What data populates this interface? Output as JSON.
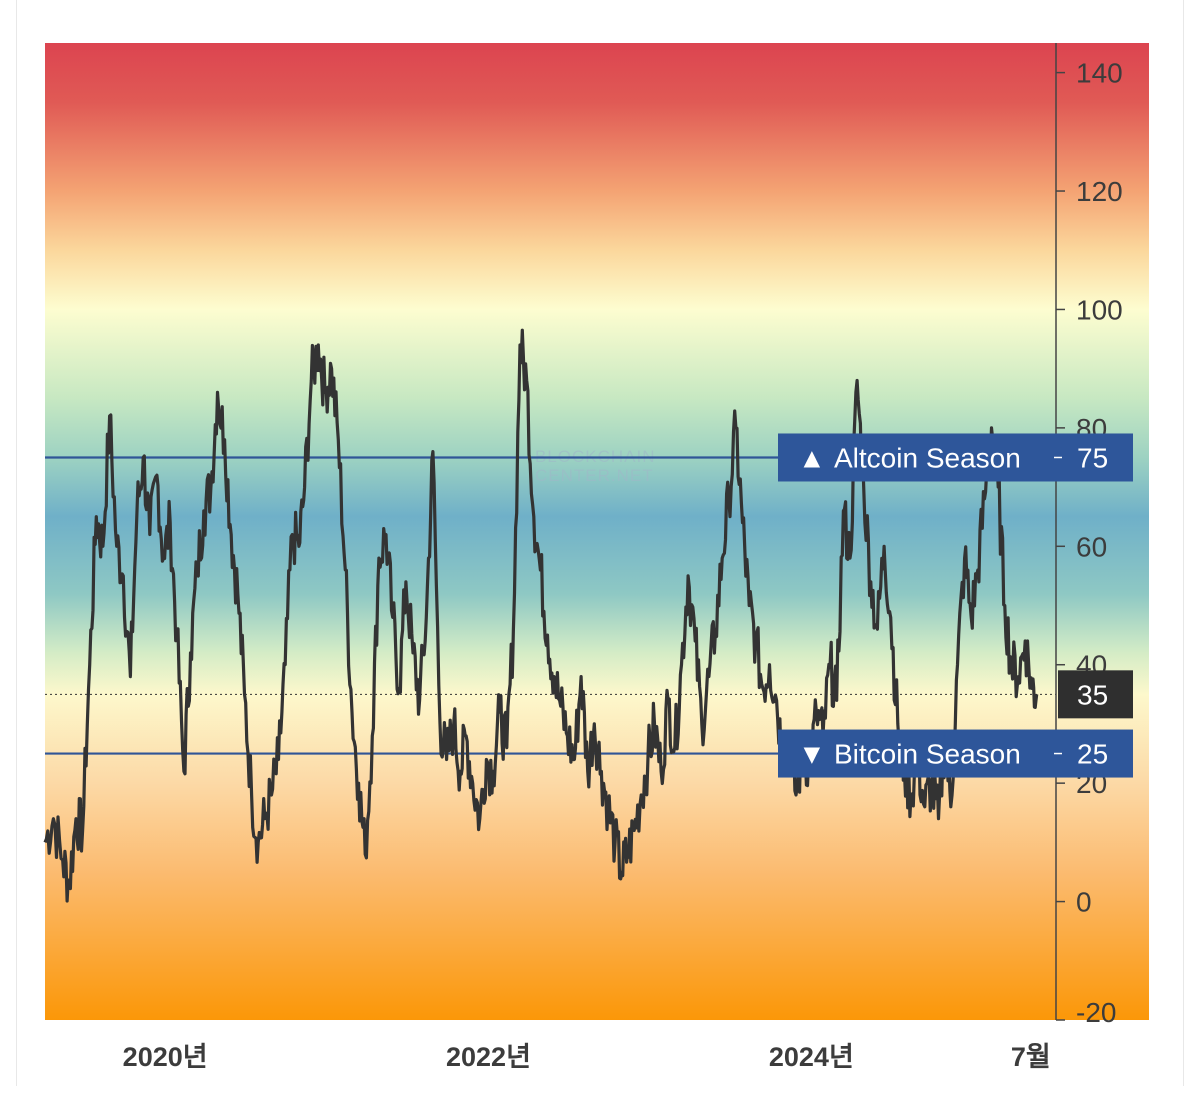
{
  "chart_data": {
    "type": "line",
    "title": "",
    "xlabel": "",
    "ylabel": "",
    "ylim": [
      -20,
      145
    ],
    "y_ticks": [
      140,
      120,
      100,
      80,
      60,
      40,
      20,
      0,
      -20
    ],
    "x_ticks": [
      {
        "label": "2020년",
        "date": "2020-01-01"
      },
      {
        "label": "2022년",
        "date": "2022-01-01"
      },
      {
        "label": "2024년",
        "date": "2024-01-01"
      },
      {
        "label": "7월",
        "date": "2025-07-01"
      }
    ],
    "x_range": [
      "2019-08-01",
      "2026-06-01"
    ],
    "current_value": 35,
    "thresholds": [
      {
        "label": "Altcoin Season",
        "value": 75,
        "symbol": "▲"
      },
      {
        "label": "Bitcoin Season",
        "value": 25,
        "symbol": "▼"
      }
    ],
    "background_gradient": [
      {
        "value": 145,
        "color": "#dc4450"
      },
      {
        "value": 135,
        "color": "#e05a55"
      },
      {
        "value": 120,
        "color": "#f4a373"
      },
      {
        "value": 110,
        "color": "#fbd79c"
      },
      {
        "value": 100,
        "color": "#fdfdd0"
      },
      {
        "value": 85,
        "color": "#c7e8c2"
      },
      {
        "value": 75,
        "color": "#9dd2c2"
      },
      {
        "value": 65,
        "color": "#6fb0c8"
      },
      {
        "value": 52,
        "color": "#8ec8c4"
      },
      {
        "value": 42,
        "color": "#d4ecc6"
      },
      {
        "value": 35,
        "color": "#fdf8cc"
      },
      {
        "value": 20,
        "color": "#fcd9a6"
      },
      {
        "value": 5,
        "color": "#fbbb70"
      },
      {
        "value": -20,
        "color": "#fb9708"
      }
    ],
    "watermark": [
      "BLOCKCHAIN",
      "CENTER.NET"
    ],
    "series": [
      {
        "points": [
          [
            "2019-08-01",
            10
          ],
          [
            "2019-08-20",
            14
          ],
          [
            "2019-09-10",
            7
          ],
          [
            "2019-09-25",
            3
          ],
          [
            "2019-10-10",
            14
          ],
          [
            "2019-10-25",
            12
          ],
          [
            "2019-11-10",
            40
          ],
          [
            "2019-11-25",
            65
          ],
          [
            "2019-12-10",
            60
          ],
          [
            "2019-12-25",
            82
          ],
          [
            "2020-01-10",
            60
          ],
          [
            "2020-01-25",
            55
          ],
          [
            "2020-02-10",
            38
          ],
          [
            "2020-02-25",
            66
          ],
          [
            "2020-03-10",
            75
          ],
          [
            "2020-03-25",
            62
          ],
          [
            "2020-04-10",
            72
          ],
          [
            "2020-04-25",
            58
          ],
          [
            "2020-05-10",
            64
          ],
          [
            "2020-05-25",
            45
          ],
          [
            "2020-06-10",
            22
          ],
          [
            "2020-06-25",
            42
          ],
          [
            "2020-07-10",
            56
          ],
          [
            "2020-07-25",
            66
          ],
          [
            "2020-08-10",
            70
          ],
          [
            "2020-08-25",
            86
          ],
          [
            "2020-09-10",
            78
          ],
          [
            "2020-09-25",
            62
          ],
          [
            "2020-10-10",
            52
          ],
          [
            "2020-10-25",
            35
          ],
          [
            "2020-11-10",
            18
          ],
          [
            "2020-11-25",
            10
          ],
          [
            "2020-12-10",
            14
          ],
          [
            "2020-12-25",
            18
          ],
          [
            "2021-01-10",
            24
          ],
          [
            "2021-01-25",
            40
          ],
          [
            "2021-02-10",
            62
          ],
          [
            "2021-02-25",
            60
          ],
          [
            "2021-03-10",
            70
          ],
          [
            "2021-03-25",
            88
          ],
          [
            "2021-04-10",
            94
          ],
          [
            "2021-04-25",
            86
          ],
          [
            "2021-05-10",
            90
          ],
          [
            "2021-05-25",
            78
          ],
          [
            "2021-06-10",
            56
          ],
          [
            "2021-06-25",
            32
          ],
          [
            "2021-07-10",
            20
          ],
          [
            "2021-07-25",
            8
          ],
          [
            "2021-08-10",
            28
          ],
          [
            "2021-08-25",
            58
          ],
          [
            "2021-09-10",
            62
          ],
          [
            "2021-09-25",
            48
          ],
          [
            "2021-10-10",
            36
          ],
          [
            "2021-10-25",
            54
          ],
          [
            "2021-11-10",
            42
          ],
          [
            "2021-11-25",
            34
          ],
          [
            "2021-12-10",
            48
          ],
          [
            "2021-12-25",
            76
          ],
          [
            "2022-01-10",
            30
          ],
          [
            "2022-01-25",
            24
          ],
          [
            "2022-02-10",
            30
          ],
          [
            "2022-02-25",
            22
          ],
          [
            "2022-03-10",
            28
          ],
          [
            "2022-03-25",
            20
          ],
          [
            "2022-04-10",
            14
          ],
          [
            "2022-04-25",
            24
          ],
          [
            "2022-05-10",
            22
          ],
          [
            "2022-05-25",
            32
          ],
          [
            "2022-06-10",
            26
          ],
          [
            "2022-06-25",
            46
          ],
          [
            "2022-07-10",
            94
          ],
          [
            "2022-07-25",
            88
          ],
          [
            "2022-08-10",
            65
          ],
          [
            "2022-08-25",
            56
          ],
          [
            "2022-09-10",
            45
          ],
          [
            "2022-09-25",
            38
          ],
          [
            "2022-10-10",
            33
          ],
          [
            "2022-10-25",
            28
          ],
          [
            "2022-11-10",
            24
          ],
          [
            "2022-11-25",
            38
          ],
          [
            "2022-12-10",
            22
          ],
          [
            "2022-12-25",
            30
          ],
          [
            "2023-01-10",
            22
          ],
          [
            "2023-01-25",
            16
          ],
          [
            "2023-02-10",
            10
          ],
          [
            "2023-02-25",
            5
          ],
          [
            "2023-03-10",
            8
          ],
          [
            "2023-03-25",
            12
          ],
          [
            "2023-04-10",
            18
          ],
          [
            "2023-04-25",
            24
          ],
          [
            "2023-05-10",
            30
          ],
          [
            "2023-05-25",
            22
          ],
          [
            "2023-06-10",
            34
          ],
          [
            "2023-06-25",
            26
          ],
          [
            "2023-07-10",
            40
          ],
          [
            "2023-07-25",
            55
          ],
          [
            "2023-08-10",
            44
          ],
          [
            "2023-08-25",
            30
          ],
          [
            "2023-09-10",
            38
          ],
          [
            "2023-09-25",
            46
          ],
          [
            "2023-10-10",
            58
          ],
          [
            "2023-10-25",
            68
          ],
          [
            "2023-11-10",
            80
          ],
          [
            "2023-11-25",
            64
          ],
          [
            "2023-12-10",
            50
          ],
          [
            "2023-12-25",
            44
          ],
          [
            "2024-01-10",
            36
          ],
          [
            "2024-01-25",
            40
          ],
          [
            "2024-02-10",
            34
          ],
          [
            "2024-02-25",
            24
          ],
          [
            "2024-03-10",
            28
          ],
          [
            "2024-03-25",
            18
          ],
          [
            "2024-04-10",
            26
          ],
          [
            "2024-04-25",
            22
          ],
          [
            "2024-05-10",
            32
          ],
          [
            "2024-05-25",
            28
          ],
          [
            "2024-06-10",
            40
          ],
          [
            "2024-06-25",
            34
          ],
          [
            "2024-07-10",
            66
          ],
          [
            "2024-07-25",
            58
          ],
          [
            "2024-08-10",
            88
          ],
          [
            "2024-08-25",
            70
          ],
          [
            "2024-09-10",
            54
          ],
          [
            "2024-09-25",
            46
          ],
          [
            "2024-10-10",
            60
          ],
          [
            "2024-10-25",
            48
          ],
          [
            "2024-11-10",
            30
          ],
          [
            "2024-11-25",
            22
          ],
          [
            "2024-12-10",
            18
          ],
          [
            "2024-12-25",
            24
          ],
          [
            "2025-01-10",
            16
          ],
          [
            "2025-01-25",
            20
          ],
          [
            "2025-02-10",
            14
          ],
          [
            "2025-02-25",
            28
          ],
          [
            "2025-03-10",
            16
          ],
          [
            "2025-03-25",
            40
          ],
          [
            "2025-04-10",
            58
          ],
          [
            "2025-04-25",
            48
          ],
          [
            "2025-05-10",
            56
          ],
          [
            "2025-05-25",
            68
          ],
          [
            "2025-06-10",
            80
          ],
          [
            "2025-06-25",
            70
          ],
          [
            "2025-07-10",
            50
          ],
          [
            "2025-07-25",
            40
          ],
          [
            "2025-08-10",
            38
          ],
          [
            "2025-08-25",
            44
          ],
          [
            "2025-09-10",
            36
          ],
          [
            "2025-09-20",
            35
          ]
        ]
      }
    ]
  }
}
